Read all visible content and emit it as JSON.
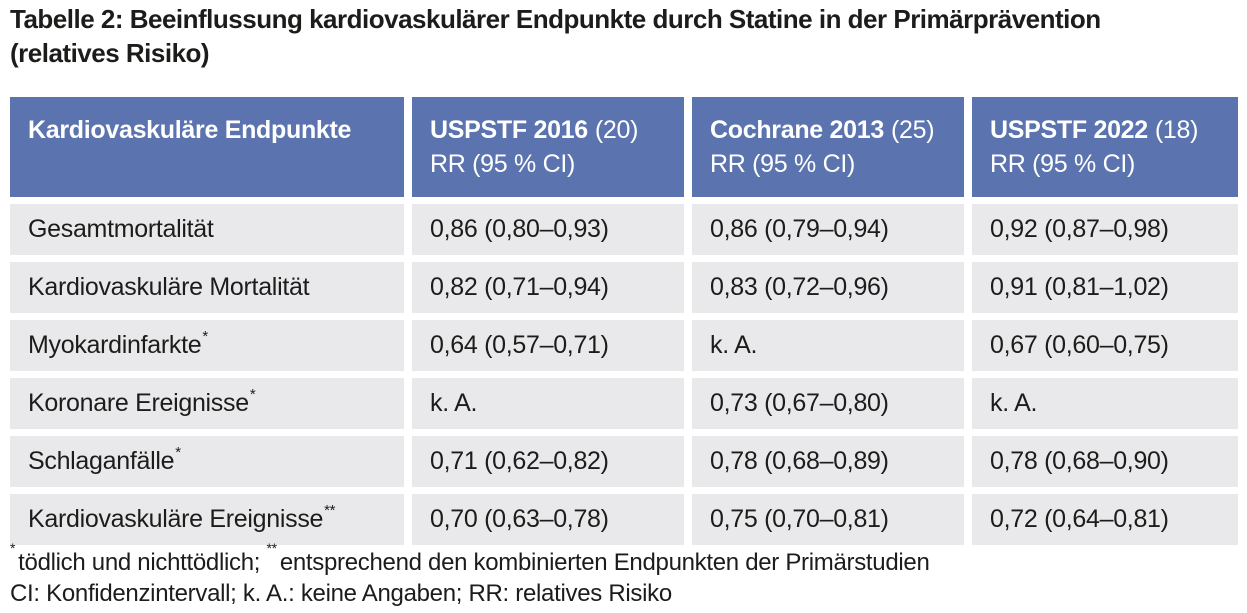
{
  "title": {
    "line1": "Tabelle 2: Beeinflussung kardiovaskulärer Endpunkte durch Statine in der Primärprävention",
    "line2": "(relatives Risiko)"
  },
  "colors": {
    "header_bg": "#5b73ae",
    "header_text": "#ffffff",
    "row_bg": "#e9e9eb",
    "body_text": "#1c1c1b"
  },
  "table": {
    "header": {
      "endpoint_col": "Kardiovaskuläre Endpunkte",
      "columns": [
        {
          "name": "USPSTF 2016",
          "ref": "(20)",
          "sub": "RR (95 % CI)"
        },
        {
          "name": "Cochrane 2013",
          "ref": "(25)",
          "sub": "RR (95 % CI)"
        },
        {
          "name": "USPSTF 2022",
          "ref": "(18)",
          "sub": "RR (95 % CI)"
        }
      ]
    },
    "rows": [
      {
        "label": "Gesamtmortalität",
        "sup": "",
        "uspstf2016": "0,86 (0,80–0,93)",
        "cochrane2013": "0,86 (0,79–0,94)",
        "uspstf2022": "0,92 (0,87–0,98)"
      },
      {
        "label": "Kardiovaskuläre Mortalität",
        "sup": "",
        "uspstf2016": "0,82 (0,71–0,94)",
        "cochrane2013": "0,83 (0,72–0,96)",
        "uspstf2022": "0,91 (0,81–1,02)"
      },
      {
        "label": "Myokardinfarkte",
        "sup": "*",
        "uspstf2016": "0,64 (0,57–0,71)",
        "cochrane2013": "k. A.",
        "uspstf2022": "0,67 (0,60–0,75)"
      },
      {
        "label": "Koronare Ereignisse",
        "sup": "*",
        "uspstf2016": "k. A.",
        "cochrane2013": "0,73 (0,67–0,80)",
        "uspstf2022": "k. A."
      },
      {
        "label": "Schlaganfälle",
        "sup": "*",
        "uspstf2016": "0,71 (0,62–0,82)",
        "cochrane2013": "0,78 (0,68–0,89)",
        "uspstf2022": "0,78 (0,68–0,90)"
      },
      {
        "label": "Kardiovaskuläre Ereignisse",
        "sup": "**",
        "uspstf2016": "0,70 (0,63–0,78)",
        "cochrane2013": "0,75 (0,70–0,81)",
        "uspstf2022": "0,72 (0,64–0,81)"
      }
    ]
  },
  "footnotes": {
    "sup1": "*",
    "text1": "tödlich und nichttödlich; ",
    "sup2": "**",
    "text2": "entsprechend den kombinierten Endpunkten der Primärstudien",
    "line2": "CI: Konfidenzintervall; k. A.: keine Angaben; RR: relatives Risiko"
  }
}
